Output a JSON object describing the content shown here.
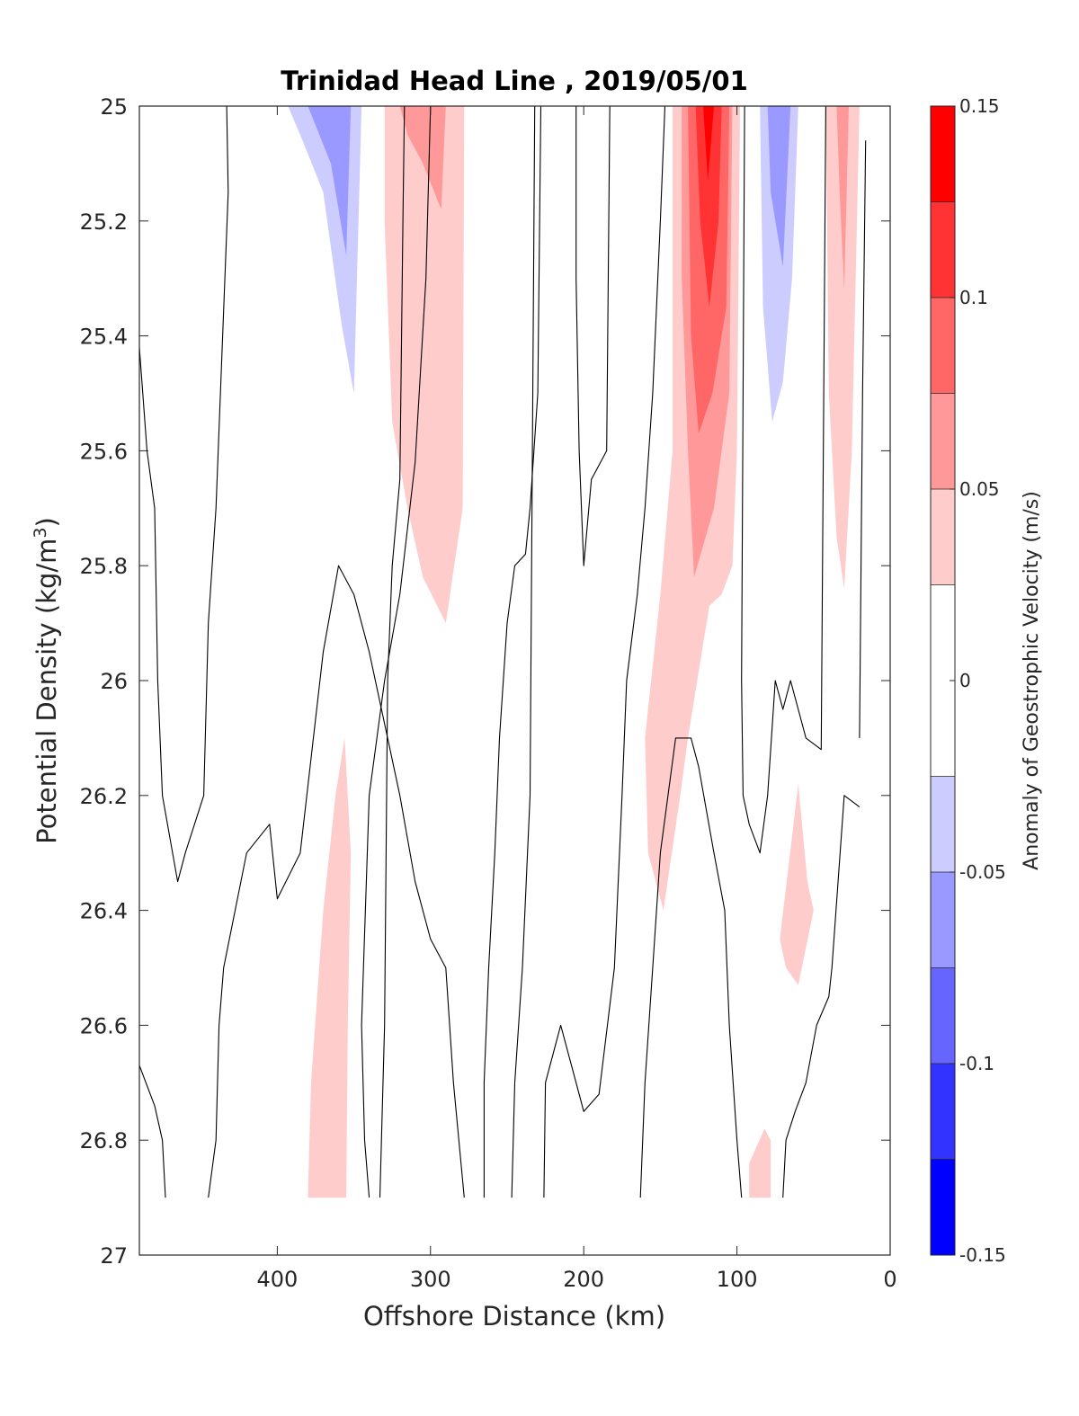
{
  "chart_data": {
    "type": "heatmap",
    "title": "Trinidad Head Line , 2019/05/01",
    "xlabel": "Offshore Distance (km)",
    "ylabel": "Potential Density (kg/m",
    "ylabel_superscript": "3",
    "ylabel_suffix": ")",
    "colorbar_label": "Anomaly of Geostrophic Velocity (m/s)",
    "xlim": [
      490,
      0
    ],
    "x_reversed": true,
    "ylim": [
      25,
      27
    ],
    "y_reversed": true,
    "xticks": [
      400,
      300,
      200,
      100,
      0
    ],
    "xtick_labels": [
      "400",
      "300",
      "200",
      "100",
      "0"
    ],
    "yticks": [
      25,
      25.2,
      25.4,
      25.6,
      25.8,
      26,
      26.2,
      26.4,
      26.6,
      26.8,
      27
    ],
    "ytick_labels": [
      "25",
      "25.2",
      "25.4",
      "25.6",
      "25.8",
      "26",
      "26.2",
      "26.4",
      "26.6",
      "26.8",
      "27"
    ],
    "colorbar": {
      "min": -0.15,
      "max": 0.15,
      "levels": [
        -0.15,
        -0.125,
        -0.1,
        -0.075,
        -0.05,
        -0.025,
        0.025,
        0.05,
        0.075,
        0.1,
        0.125,
        0.15
      ],
      "colors": [
        "#0000ff",
        "#3333ff",
        "#6666ff",
        "#9999ff",
        "#ccccff",
        "#ffffff",
        "#ffcccc",
        "#ff9999",
        "#ff6666",
        "#ff3333",
        "#ff0000"
      ],
      "tick_values": [
        0.15,
        0.1,
        0.05,
        0,
        -0.05,
        -0.1,
        -0.15
      ],
      "tick_labels": [
        "0.15",
        "0.1",
        "0.05",
        "0",
        "-0.05",
        "-0.1",
        "-0.15"
      ]
    },
    "filled_regions": [
      {
        "level": -0.025,
        "points": [
          [
            410,
            25
          ],
          [
            343,
            25
          ],
          [
            341,
            25.7
          ],
          [
            349,
            25.73
          ],
          [
            357,
            25.6
          ],
          [
            360,
            25.45
          ],
          [
            370,
            25.48
          ],
          [
            380,
            25.5
          ],
          [
            393,
            25.65
          ],
          [
            402,
            25.73
          ],
          [
            410,
            25.6
          ]
        ]
      },
      {
        "level": -0.05,
        "points": [
          [
            393,
            25
          ],
          [
            345,
            25
          ],
          [
            350,
            25.5
          ],
          [
            358,
            25.38
          ],
          [
            370,
            25.15
          ],
          [
            385,
            25.05
          ]
        ]
      },
      {
        "level": -0.075,
        "points": [
          [
            380,
            25
          ],
          [
            352,
            25
          ],
          [
            355,
            25.26
          ],
          [
            365,
            25.1
          ]
        ]
      },
      {
        "level": 0.025,
        "points": [
          [
            330,
            25
          ],
          [
            278,
            25
          ],
          [
            279,
            25.7
          ],
          [
            290,
            25.9
          ],
          [
            305,
            25.82
          ],
          [
            315,
            25.7
          ],
          [
            325,
            25.55
          ],
          [
            330,
            25.2
          ]
        ]
      },
      {
        "level": 0.05,
        "points": [
          [
            320,
            25
          ],
          [
            290,
            25
          ],
          [
            293,
            25.18
          ],
          [
            305,
            25.1
          ],
          [
            315,
            25.05
          ]
        ]
      },
      {
        "level": -0.025,
        "points": [
          [
            263,
            25
          ],
          [
            250,
            25
          ],
          [
            257,
            25.28
          ],
          [
            261,
            25.15
          ]
        ]
      },
      {
        "level": -0.025,
        "points": [
          [
            172,
            25
          ],
          [
            150,
            25
          ],
          [
            151,
            25.58
          ],
          [
            160,
            25.45
          ],
          [
            172,
            25.4
          ]
        ]
      },
      {
        "level": 0.025,
        "points": [
          [
            142,
            25
          ],
          [
            98,
            25
          ],
          [
            100,
            25.6
          ],
          [
            103,
            25.8
          ],
          [
            110,
            25.85
          ],
          [
            118,
            25.87
          ],
          [
            132,
            26.1
          ],
          [
            137,
            26.2
          ],
          [
            148,
            26.4
          ],
          [
            158,
            26.3
          ],
          [
            160,
            26.1
          ],
          [
            150,
            25.85
          ],
          [
            142,
            25.6
          ]
        ]
      },
      {
        "level": 0.05,
        "points": [
          [
            136,
            25
          ],
          [
            103,
            25
          ],
          [
            105,
            25.5
          ],
          [
            115,
            25.7
          ],
          [
            128,
            25.82
          ],
          [
            132,
            25.6
          ],
          [
            136,
            25.3
          ]
        ]
      },
      {
        "level": 0.075,
        "points": [
          [
            132,
            25
          ],
          [
            105,
            25
          ],
          [
            107,
            25.35
          ],
          [
            116,
            25.5
          ],
          [
            125,
            25.57
          ],
          [
            130,
            25.4
          ]
        ]
      },
      {
        "level": 0.1,
        "points": [
          [
            127,
            25
          ],
          [
            110,
            25
          ],
          [
            112,
            25.2
          ],
          [
            118,
            25.35
          ],
          [
            124,
            25.2
          ]
        ]
      },
      {
        "level": 0.125,
        "points": [
          [
            122,
            25
          ],
          [
            115,
            25
          ],
          [
            119,
            25.13
          ]
        ]
      },
      {
        "level": -0.025,
        "points": [
          [
            93,
            25
          ],
          [
            55,
            25
          ],
          [
            58,
            25.5
          ],
          [
            62,
            25.72
          ],
          [
            68,
            25.78
          ],
          [
            75,
            25.88
          ],
          [
            82,
            25.78
          ],
          [
            90,
            25.6
          ],
          [
            93,
            25.4
          ]
        ]
      },
      {
        "level": -0.05,
        "points": [
          [
            85,
            25
          ],
          [
            60,
            25
          ],
          [
            64,
            25.3
          ],
          [
            70,
            25.48
          ],
          [
            77,
            25.55
          ],
          [
            83,
            25.35
          ]
        ]
      },
      {
        "level": -0.075,
        "points": [
          [
            80,
            25
          ],
          [
            65,
            25
          ],
          [
            70,
            25.28
          ],
          [
            78,
            25.15
          ]
        ]
      },
      {
        "level": 0.025,
        "points": [
          [
            42,
            25
          ],
          [
            20,
            25
          ],
          [
            25,
            25.6
          ],
          [
            30,
            25.84
          ],
          [
            35,
            25.75
          ],
          [
            40,
            25.5
          ]
        ]
      },
      {
        "level": 0.05,
        "points": [
          [
            35,
            25
          ],
          [
            27,
            25
          ],
          [
            30,
            25.32
          ],
          [
            33,
            25.15
          ]
        ]
      },
      {
        "level": 0.025,
        "points": [
          [
            380,
            26.9
          ],
          [
            355,
            26.9
          ],
          [
            354,
            26.6
          ],
          [
            352,
            26.3
          ],
          [
            356,
            26.1
          ],
          [
            362,
            26.2
          ],
          [
            370,
            26.4
          ],
          [
            378,
            26.7
          ]
        ]
      },
      {
        "level": 0.025,
        "points": [
          [
            72,
            26.45
          ],
          [
            60,
            26.18
          ],
          [
            54,
            26.35
          ],
          [
            50,
            26.4
          ],
          [
            60,
            26.53
          ],
          [
            68,
            26.5
          ]
        ]
      },
      {
        "level": -0.025,
        "points": [
          [
            152,
            26.9
          ],
          [
            107,
            26.9
          ],
          [
            107,
            26.5
          ],
          [
            110,
            26.4
          ],
          [
            118,
            26.3
          ],
          [
            122,
            26.26
          ],
          [
            132,
            26.4
          ],
          [
            145,
            26.6
          ],
          [
            150,
            26.75
          ]
        ]
      },
      {
        "level": 0.025,
        "points": [
          [
            92,
            26.9
          ],
          [
            78,
            26.9
          ],
          [
            78,
            26.8
          ],
          [
            82,
            26.78
          ],
          [
            92,
            26.84
          ]
        ]
      },
      {
        "level": -0.025,
        "points": [
          [
            58,
            26.9
          ],
          [
            38,
            26.9
          ],
          [
            40,
            26.84
          ],
          [
            48,
            26.8
          ],
          [
            58,
            26.85
          ]
        ]
      },
      {
        "level": -0.025,
        "points": [
          [
            302,
            26.9
          ],
          [
            285,
            26.9
          ],
          [
            292,
            26.85
          ],
          [
            300,
            26.87
          ]
        ]
      }
    ],
    "contour_lines": [
      [
        [
          490,
          25.42
        ],
        [
          485,
          25.6
        ],
        [
          480,
          25.7
        ],
        [
          478,
          26.0
        ],
        [
          475,
          26.2
        ],
        [
          465,
          26.35
        ],
        [
          460,
          26.3
        ],
        [
          448,
          26.2
        ],
        [
          445,
          25.9
        ],
        [
          440,
          25.7
        ],
        [
          432,
          25.15
        ],
        [
          433,
          25.0
        ]
      ],
      [
        [
          490,
          26.67
        ],
        [
          480,
          26.74
        ],
        [
          475,
          26.8
        ],
        [
          473,
          26.9
        ]
      ],
      [
        [
          445,
          26.9
        ],
        [
          440,
          26.8
        ],
        [
          438,
          26.6
        ],
        [
          435,
          26.5
        ],
        [
          420,
          26.3
        ],
        [
          405,
          26.25
        ],
        [
          400,
          26.38
        ],
        [
          385,
          26.3
        ],
        [
          370,
          25.95
        ],
        [
          360,
          25.8
        ],
        [
          350,
          25.85
        ],
        [
          340,
          25.95
        ],
        [
          320,
          26.2
        ],
        [
          310,
          26.35
        ],
        [
          300,
          26.45
        ],
        [
          290,
          26.5
        ],
        [
          285,
          26.7
        ],
        [
          278,
          26.9
        ]
      ],
      [
        [
          340,
          26.9
        ],
        [
          343,
          26.8
        ],
        [
          345,
          26.6
        ],
        [
          340,
          26.2
        ],
        [
          330,
          26.0
        ],
        [
          320,
          25.85
        ],
        [
          310,
          25.62
        ],
        [
          303,
          25.3
        ],
        [
          300,
          25.0
        ]
      ],
      [
        [
          333,
          26.9
        ],
        [
          330,
          26.6
        ],
        [
          328,
          26.0
        ],
        [
          325,
          25.8
        ],
        [
          320,
          25.65
        ],
        [
          318,
          25.2
        ],
        [
          317,
          25.0
        ]
      ],
      [
        [
          265,
          26.9
        ],
        [
          265,
          26.7
        ],
        [
          262,
          26.5
        ],
        [
          258,
          26.3
        ],
        [
          255,
          26.1
        ],
        [
          250,
          25.9
        ],
        [
          245,
          25.8
        ],
        [
          238,
          25.78
        ],
        [
          235,
          25.7
        ],
        [
          230,
          25.5
        ],
        [
          228,
          25.0
        ]
      ],
      [
        [
          247,
          26.9
        ],
        [
          245,
          26.7
        ],
        [
          240,
          26.5
        ],
        [
          235,
          26.2
        ],
        [
          232,
          25.0
        ]
      ],
      [
        [
          226,
          26.9
        ],
        [
          225,
          26.7
        ],
        [
          220,
          26.65
        ],
        [
          215,
          26.6
        ],
        [
          205,
          26.7
        ],
        [
          200,
          26.75
        ],
        [
          190,
          26.72
        ],
        [
          180,
          26.5
        ],
        [
          175,
          26.2
        ],
        [
          172,
          26.0
        ],
        [
          165,
          25.85
        ],
        [
          160,
          25.7
        ],
        [
          155,
          25.5
        ],
        [
          150,
          25.2
        ],
        [
          147,
          25.0
        ]
      ],
      [
        [
          205,
          25.0
        ],
        [
          205,
          25.3
        ],
        [
          203,
          25.6
        ],
        [
          200,
          25.8
        ],
        [
          195,
          25.65
        ],
        [
          185,
          25.6
        ],
        [
          183,
          25.0
        ]
      ],
      [
        [
          163,
          26.9
        ],
        [
          160,
          26.7
        ],
        [
          155,
          26.5
        ],
        [
          150,
          26.3
        ],
        [
          140,
          26.1
        ],
        [
          130,
          26.1
        ],
        [
          125,
          26.15
        ],
        [
          115,
          26.3
        ],
        [
          108,
          26.4
        ],
        [
          105,
          26.6
        ],
        [
          100,
          26.8
        ],
        [
          97,
          26.9
        ]
      ],
      [
        [
          95,
          25.0
        ],
        [
          96,
          25.5
        ],
        [
          97,
          26.0
        ],
        [
          96,
          26.2
        ],
        [
          92,
          26.25
        ],
        [
          85,
          26.3
        ],
        [
          80,
          26.2
        ],
        [
          75,
          26.0
        ],
        [
          70,
          26.05
        ],
        [
          65,
          26.0
        ],
        [
          55,
          26.1
        ],
        [
          45,
          26.12
        ],
        [
          42,
          25.0
        ]
      ],
      [
        [
          70,
          26.9
        ],
        [
          68,
          26.8
        ],
        [
          62,
          26.75
        ],
        [
          55,
          26.7
        ],
        [
          48,
          26.6
        ],
        [
          40,
          26.55
        ],
        [
          38,
          26.5
        ],
        [
          30,
          26.2
        ],
        [
          20,
          26.22
        ]
      ],
      [
        [
          20,
          26.1
        ],
        [
          18,
          25.5
        ],
        [
          16,
          25.06
        ]
      ]
    ]
  }
}
